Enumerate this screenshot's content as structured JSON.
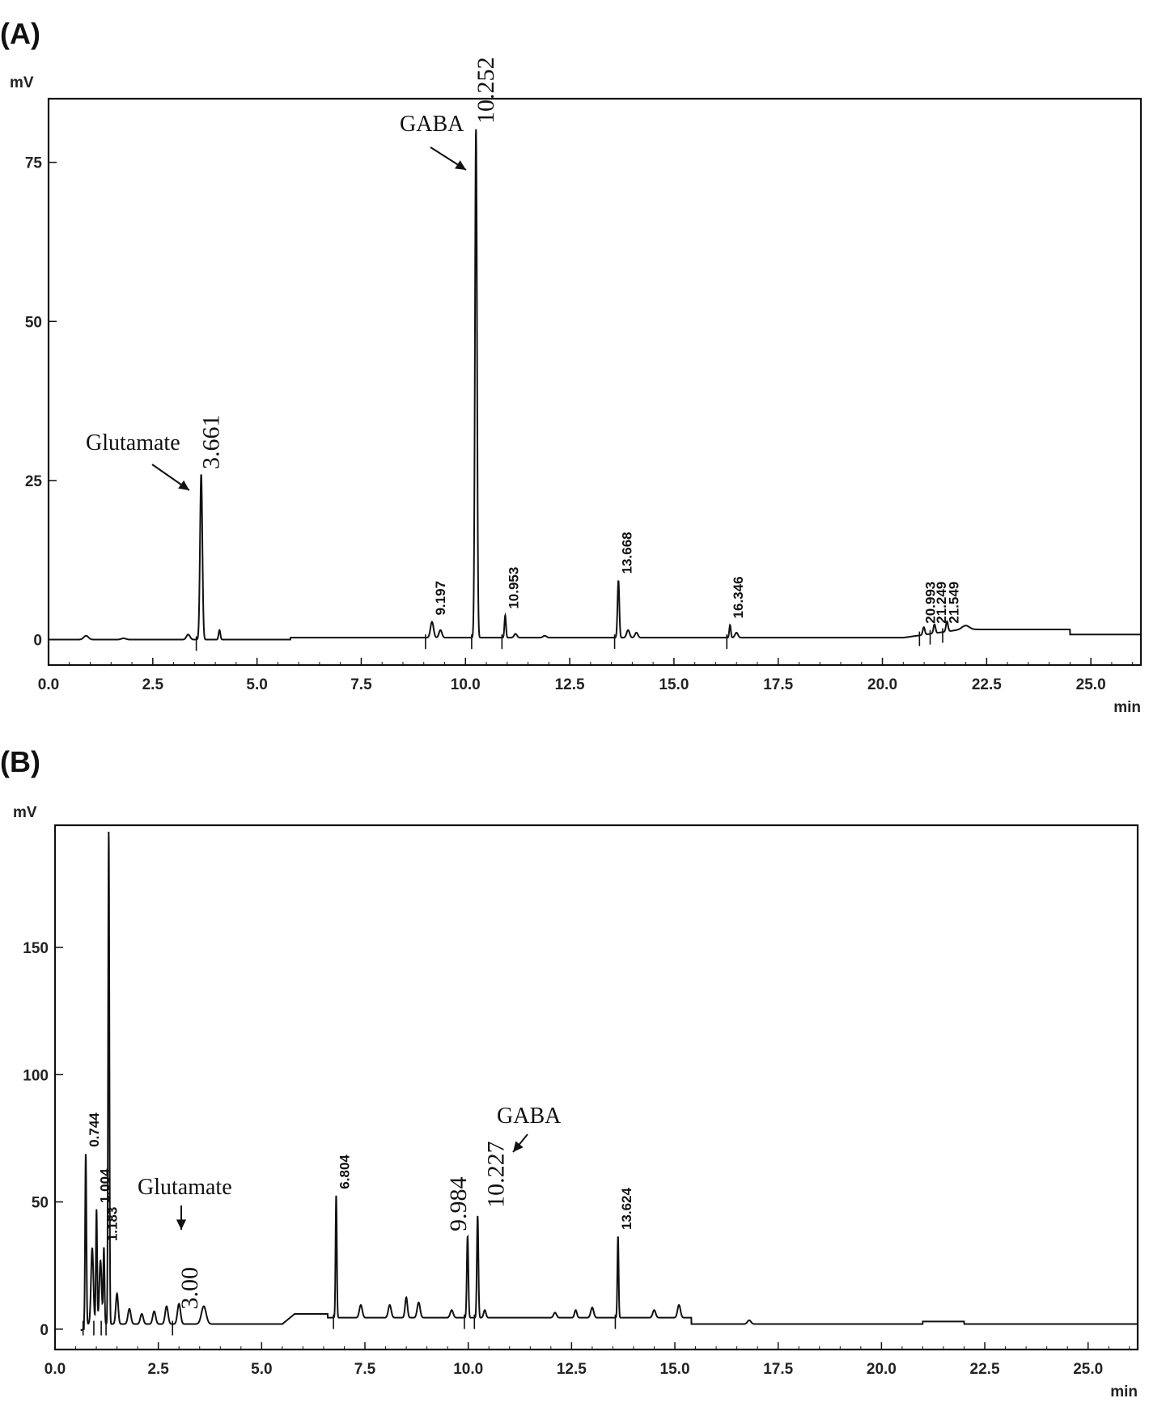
{
  "chart_data": [
    {
      "type": "line",
      "panel": "(A)",
      "ylabel": "mV",
      "xlabel": "min",
      "xlim": [
        0.0,
        26.2
      ],
      "ylim": [
        -4,
        85
      ],
      "x_ticks": [
        "0.0",
        "2.5",
        "5.0",
        "7.5",
        "10.0",
        "12.5",
        "15.0",
        "17.5",
        "20.0",
        "22.5",
        "25.0"
      ],
      "y_ticks": [
        "0",
        "25",
        "50",
        "75"
      ],
      "grid": false,
      "peaks": [
        {
          "rt": 3.661,
          "height": 26,
          "width": 0.09,
          "label": "3.661",
          "style": "big"
        },
        {
          "rt": 9.197,
          "height": 2.5,
          "width": 0.12,
          "label": "9.197",
          "style": "small"
        },
        {
          "rt": 10.252,
          "height": 80,
          "width": 0.08,
          "label": "10.252",
          "style": "big"
        },
        {
          "rt": 10.953,
          "height": 3.5,
          "width": 0.06,
          "label": "10.953",
          "style": "small"
        },
        {
          "rt": 13.668,
          "height": 9,
          "width": 0.07,
          "label": "13.668",
          "style": "small"
        },
        {
          "rt": 16.346,
          "height": 2,
          "width": 0.06,
          "label": "16.346",
          "style": "small"
        },
        {
          "rt": 20.993,
          "height": 1.2,
          "width": 0.08,
          "label": "20.993",
          "style": "small"
        },
        {
          "rt": 21.249,
          "height": 1.4,
          "width": 0.08,
          "label": "21.249",
          "style": "small"
        },
        {
          "rt": 21.549,
          "height": 1.6,
          "width": 0.08,
          "label": "21.549",
          "style": "small"
        }
      ],
      "annotations": [
        {
          "text": "Glutamate",
          "at_rt": 3.661
        },
        {
          "text": "GABA",
          "at_rt": 10.252
        }
      ]
    },
    {
      "type": "line",
      "panel": "(B)",
      "ylabel": "mV",
      "xlabel": "min",
      "xlim": [
        0.0,
        26.2
      ],
      "ylim": [
        -8,
        198
      ],
      "x_ticks": [
        "0.0",
        "2.5",
        "5.0",
        "7.5",
        "10.0",
        "12.5",
        "15.0",
        "17.5",
        "20.0",
        "22.5",
        "25.0"
      ],
      "y_ticks": [
        "0",
        "50",
        "100",
        "150"
      ],
      "grid": false,
      "peaks": [
        {
          "rt": 0.744,
          "height": 67,
          "width": 0.05,
          "label": "0.744",
          "style": "small"
        },
        {
          "rt": 1.004,
          "height": 45,
          "width": 0.05,
          "label": "1.004",
          "style": "small"
        },
        {
          "rt": 1.183,
          "height": 30,
          "width": 0.05,
          "label": "1.183",
          "style": "small"
        },
        {
          "rt": 1.3,
          "height": 194,
          "width": 0.05,
          "label": "",
          "style": "none"
        },
        {
          "rt": 3.0,
          "height": 8,
          "width": 0.12,
          "label": "3.00",
          "style": "big"
        },
        {
          "rt": 6.804,
          "height": 48,
          "width": 0.05,
          "label": "6.804",
          "style": "small"
        },
        {
          "rt": 9.984,
          "height": 32,
          "width": 0.06,
          "label": "9.984",
          "style": "big"
        },
        {
          "rt": 10.227,
          "height": 40,
          "width": 0.06,
          "label": "10.227",
          "style": "big"
        },
        {
          "rt": 13.624,
          "height": 32,
          "width": 0.05,
          "label": "13.624",
          "style": "small"
        }
      ],
      "annotations": [
        {
          "text": "Glutamate",
          "at_rt": 3.0
        },
        {
          "text": "GABA",
          "at_rt": 10.227
        }
      ]
    }
  ]
}
